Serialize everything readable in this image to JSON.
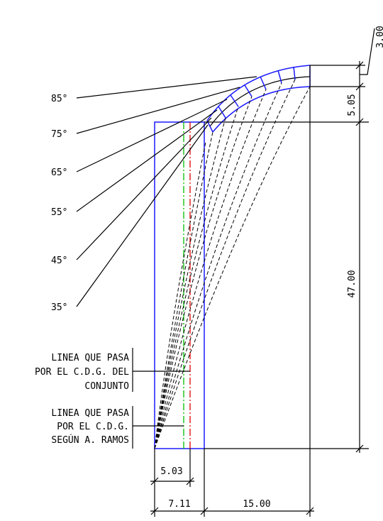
{
  "angles": [
    "85°",
    "75°",
    "65°",
    "55°",
    "45°",
    "35°"
  ],
  "dimensions": {
    "top": "3.00",
    "upper": "5.05",
    "height": "47.00",
    "cdg": "5.03",
    "width": "7.11",
    "reach": "15.00"
  },
  "notes": [
    {
      "lines": [
        "LINEA QUE PASA",
        "POR EL C.D.G. DEL",
        "CONJUNTO"
      ]
    },
    {
      "lines": [
        "LINEA QUE PASA",
        "POR EL C.D.G.",
        "SEGÚN A. RAMOS"
      ]
    }
  ]
}
